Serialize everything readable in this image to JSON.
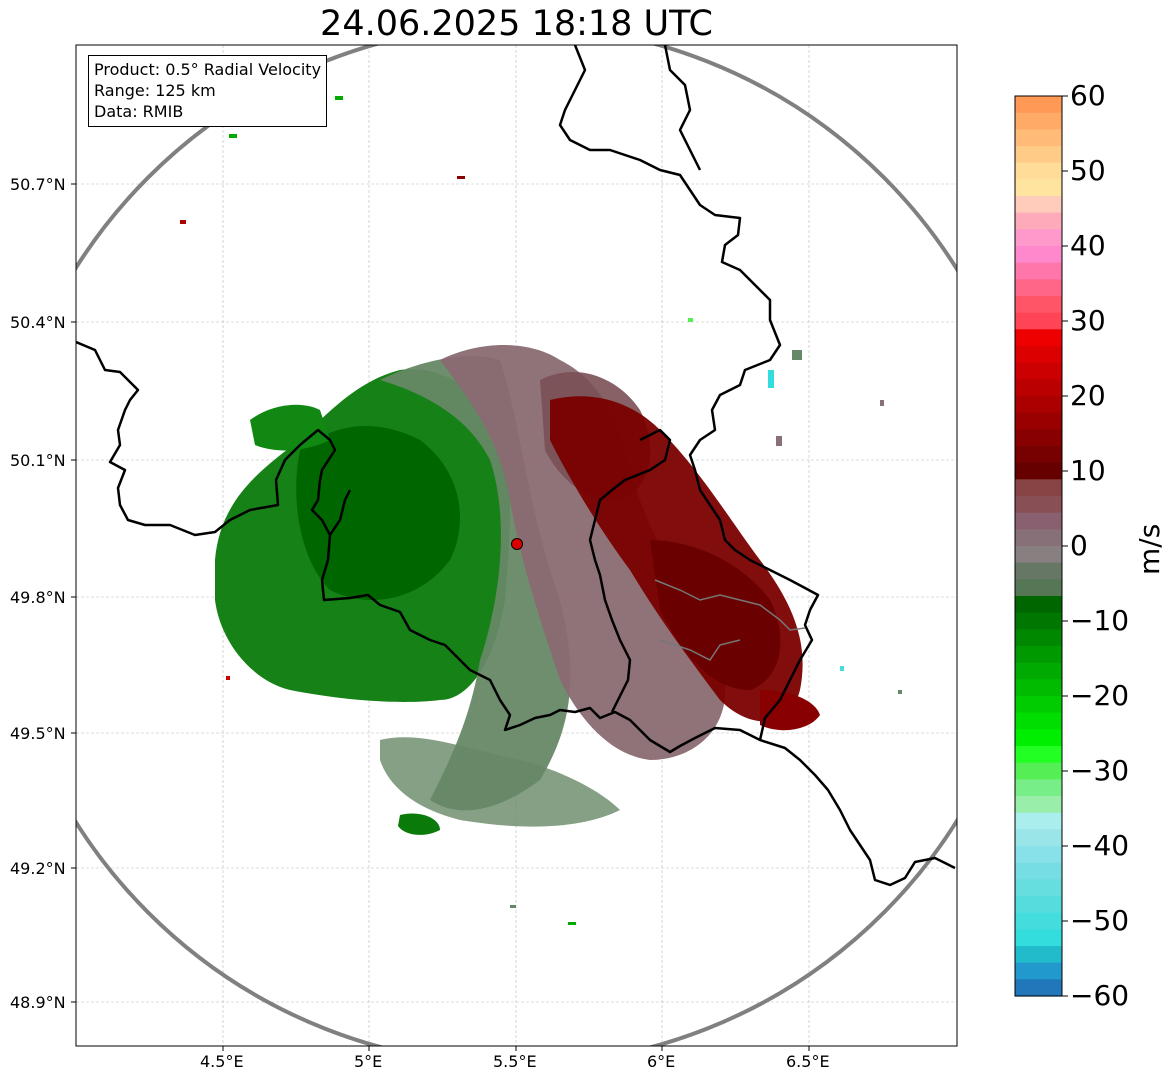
{
  "title": "24.06.2025 18:18 UTC",
  "info": {
    "product": "Product: 0.5° Radial Velocity",
    "range": "Range: 125 km",
    "data": "Data: RMIB"
  },
  "axes": {
    "lat_labels": [
      "50.7°N",
      "50.4°N",
      "50.1°N",
      "49.8°N",
      "49.5°N",
      "49.2°N",
      "48.9°N"
    ],
    "lon_labels": [
      "4.5°E",
      "5°E",
      "5.5°E",
      "6°E",
      "6.5°E"
    ]
  },
  "colorbar": {
    "unit": "m/s",
    "ticks": [
      "60",
      "50",
      "40",
      "30",
      "20",
      "10",
      "0",
      "−10",
      "−20",
      "−30",
      "−40",
      "−50",
      "−60"
    ],
    "colors": [
      "#ff9955",
      "#ffaa66",
      "#ffbb77",
      "#ffcc88",
      "#ffdd99",
      "#ffe4a0",
      "#ffccbb",
      "#ffaabb",
      "#ff99cc",
      "#ff88cc",
      "#ff77aa",
      "#ff6688",
      "#ff5566",
      "#ff4455",
      "#ee0000",
      "#dd0000",
      "#cc0000",
      "#bb0000",
      "#aa0000",
      "#990000",
      "#880000",
      "#770000",
      "#660000",
      "#884444",
      "#885055",
      "#886070",
      "#887078",
      "#888080",
      "#667766",
      "#557755",
      "#006600",
      "#007700",
      "#008800",
      "#009900",
      "#00aa00",
      "#00bb00",
      "#00cc00",
      "#00dd00",
      "#00ee00",
      "#22ff22",
      "#55ee55",
      "#77ee88",
      "#99eeaa",
      "#aaeeee",
      "#99e5e8",
      "#88e0e8",
      "#77dde5",
      "#66ddde",
      "#55dddd",
      "#44dddd",
      "#33dddd",
      "#22bbcc",
      "#2299cc",
      "#2277bb"
    ]
  },
  "radar": {
    "site_lat": 49.914,
    "site_lon": 5.505
  },
  "colors": {
    "ring": "#808080",
    "border": "#000000",
    "site": "#dd0000"
  }
}
